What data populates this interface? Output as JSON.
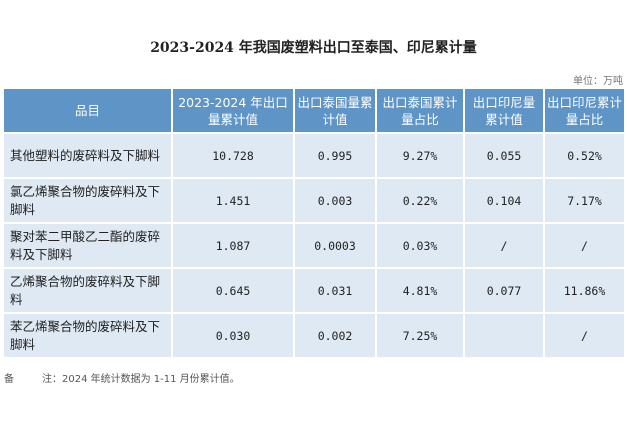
{
  "title": "2023-2024 年我国废塑料出口至泰国、印尼累计量",
  "unit": "单位：万吨",
  "headers": [
    "品目",
    "2023-2024 年出口量累计值",
    "出口泰国量累计值",
    "出口泰国累计量占比",
    "出口印尼量累计值",
    "出口印尼累计量占比"
  ],
  "rows": [
    [
      "其他塑料的废碎料及下脚料",
      "10.728",
      "0.995",
      "9.27%",
      "0.055",
      "0.52%"
    ],
    [
      "氯乙烯聚合物的废碎料及下脚料",
      "1.451",
      "0.003",
      "0.22%",
      "0.104",
      "7.17%"
    ],
    [
      "聚对苯二甲酸乙二酯的废碎料及下脚料",
      "1.087",
      "0.0003",
      "0.03%",
      "/",
      "/"
    ],
    [
      "乙烯聚合物的废碎料及下脚料",
      "0.645",
      "0.031",
      "4.81%",
      "0.077",
      "11.86%"
    ],
    [
      "苯乙烯聚合物的废碎料及下脚料",
      "0.030",
      "0.002",
      "7.25%",
      "",
      "/"
    ]
  ],
  "note": {
    "label": "备",
    "text": "注：2024 年统计数据为 1-11 月份累计值。"
  }
}
